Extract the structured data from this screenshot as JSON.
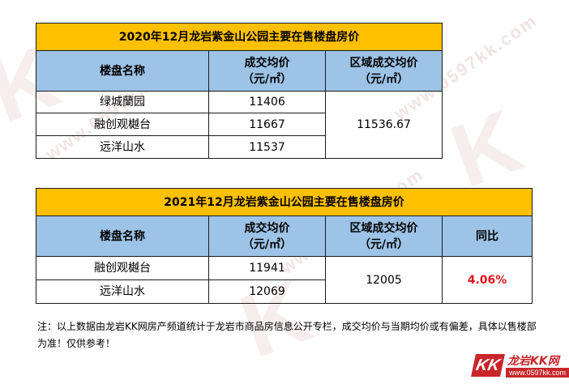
{
  "watermark": {
    "url": "www.0597kk.com",
    "brand_letter": "K"
  },
  "table_2020": {
    "title": "2020年12月龙岩紫金山公园主要在售楼盘房价",
    "headers": {
      "name": "楼盘名称",
      "avg_line1": "成交均价",
      "avg_line2": "（元/㎡）",
      "region_line1": "区域成交均价",
      "region_line2": "（元/㎡）"
    },
    "rows": [
      {
        "name": "绿城蘭园",
        "price": "11406"
      },
      {
        "name": "融创观樾台",
        "price": "11667"
      },
      {
        "name": "远洋山水",
        "price": "11537"
      }
    ],
    "region_price": "11536.67"
  },
  "table_2021": {
    "title": "2021年12月龙岩紫金山公园主要在售楼盘房价",
    "headers": {
      "name": "楼盘名称",
      "avg_line1": "成交均价",
      "avg_line2": "（元/㎡）",
      "region_line1": "区域成交均价",
      "region_line2": "（元/㎡）",
      "yoy": "同比"
    },
    "rows": [
      {
        "name": "融创观樾台",
        "price": "11941"
      },
      {
        "name": "远洋山水",
        "price": "12069"
      }
    ],
    "region_price": "12005",
    "yoy_value": "4.06%"
  },
  "note": "注：以上数据由龙岩KK网房产频道统计于龙岩市商品房信息公开专栏，成交均价与当期均价或有偏差，具体以售楼部为准！仅供参考！",
  "logo": {
    "letters": "KK",
    "name": "龙岩KK网",
    "url": "www.0597kk.com"
  },
  "colors": {
    "title_bg": "#ffc000",
    "header_bg": "#9dc3e6",
    "yoy_text": "#e1141e",
    "brand": "#c9262b"
  }
}
